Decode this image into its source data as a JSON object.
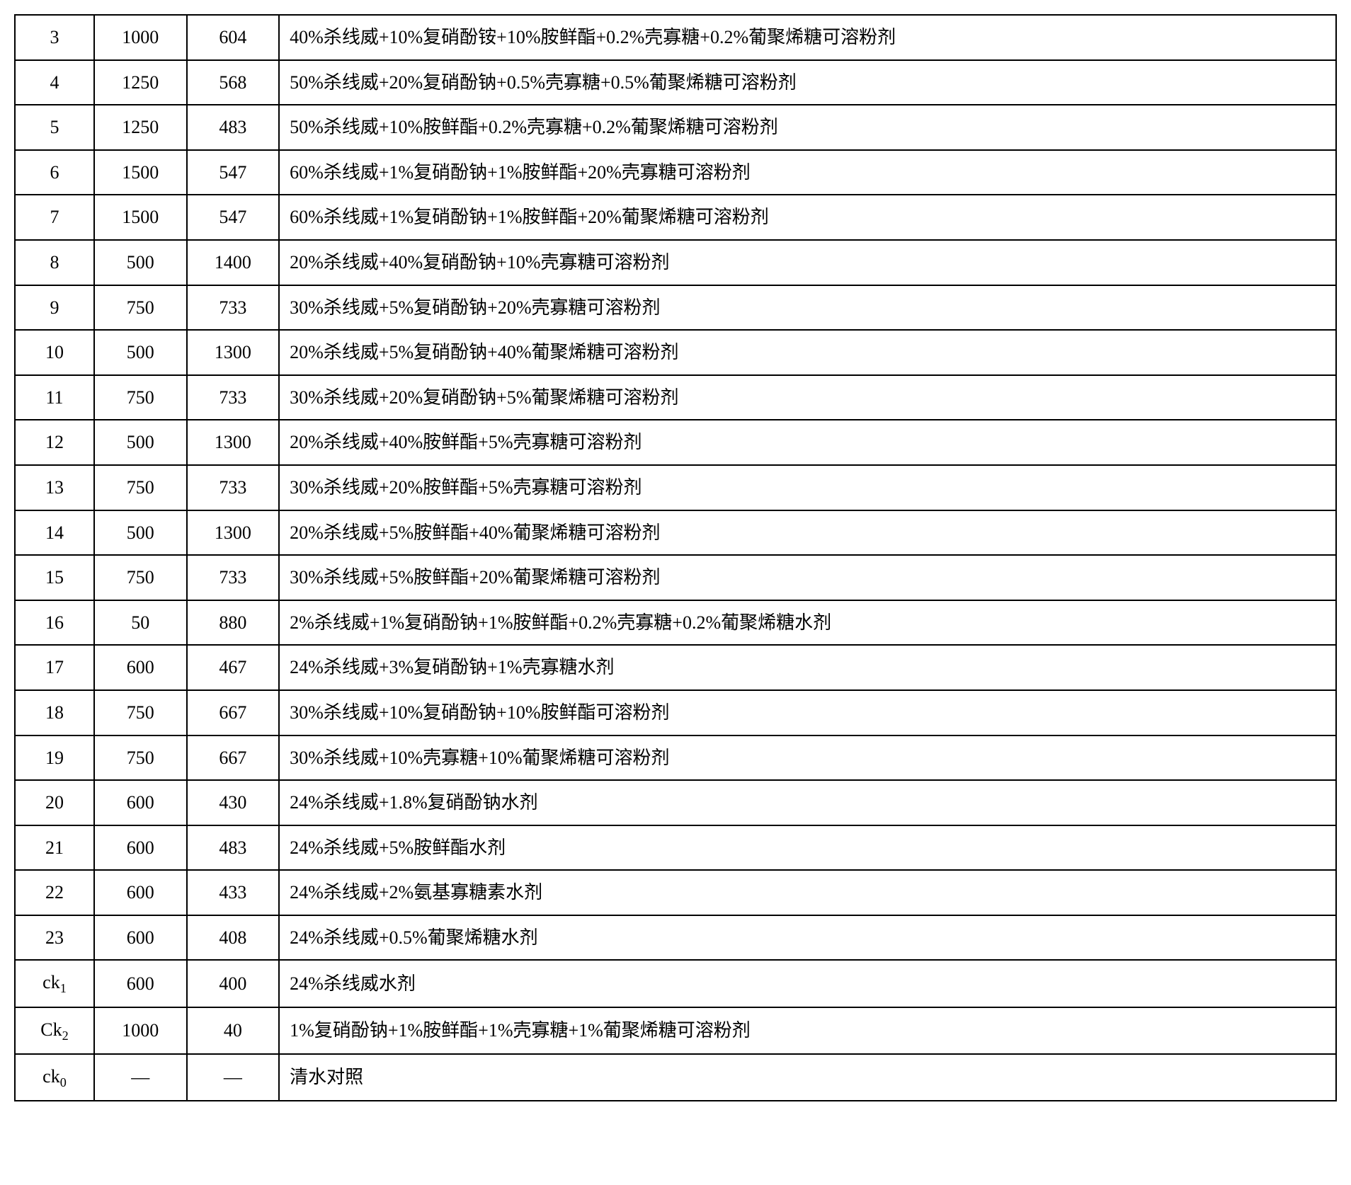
{
  "table": {
    "border_color": "#000000",
    "background_color": "#ffffff",
    "text_color": "#000000",
    "font_size_pt": 20,
    "columns": [
      {
        "align": "center",
        "width_pct": 6
      },
      {
        "align": "center",
        "width_pct": 7
      },
      {
        "align": "center",
        "width_pct": 7
      },
      {
        "align": "left",
        "width_pct": 80
      }
    ],
    "rows": [
      {
        "c1": "3",
        "c2": "1000",
        "c3": "604",
        "c4": "40%杀线威+10%复硝酚铵+10%胺鲜酯+0.2%壳寡糖+0.2%葡聚烯糖可溶粉剂"
      },
      {
        "c1": "4",
        "c2": "1250",
        "c3": "568",
        "c4": "50%杀线威+20%复硝酚钠+0.5%壳寡糖+0.5%葡聚烯糖可溶粉剂"
      },
      {
        "c1": "5",
        "c2": "1250",
        "c3": "483",
        "c4": "50%杀线威+10%胺鲜酯+0.2%壳寡糖+0.2%葡聚烯糖可溶粉剂"
      },
      {
        "c1": "6",
        "c2": "1500",
        "c3": "547",
        "c4": "60%杀线威+1%复硝酚钠+1%胺鲜酯+20%壳寡糖可溶粉剂"
      },
      {
        "c1": "7",
        "c2": "1500",
        "c3": "547",
        "c4": "60%杀线威+1%复硝酚钠+1%胺鲜酯+20%葡聚烯糖可溶粉剂"
      },
      {
        "c1": "8",
        "c2": "500",
        "c3": "1400",
        "c4": "20%杀线威+40%复硝酚钠+10%壳寡糖可溶粉剂"
      },
      {
        "c1": "9",
        "c2": "750",
        "c3": "733",
        "c4": "30%杀线威+5%复硝酚钠+20%壳寡糖可溶粉剂"
      },
      {
        "c1": "10",
        "c2": "500",
        "c3": "1300",
        "c4": "20%杀线威+5%复硝酚钠+40%葡聚烯糖可溶粉剂"
      },
      {
        "c1": "11",
        "c2": "750",
        "c3": "733",
        "c4": "30%杀线威+20%复硝酚钠+5%葡聚烯糖可溶粉剂"
      },
      {
        "c1": "12",
        "c2": "500",
        "c3": "1300",
        "c4": "20%杀线威+40%胺鲜酯+5%壳寡糖可溶粉剂"
      },
      {
        "c1": "13",
        "c2": "750",
        "c3": "733",
        "c4": "30%杀线威+20%胺鲜酯+5%壳寡糖可溶粉剂"
      },
      {
        "c1": "14",
        "c2": "500",
        "c3": "1300",
        "c4": "20%杀线威+5%胺鲜酯+40%葡聚烯糖可溶粉剂"
      },
      {
        "c1": "15",
        "c2": "750",
        "c3": "733",
        "c4": "30%杀线威+5%胺鲜酯+20%葡聚烯糖可溶粉剂"
      },
      {
        "c1": "16",
        "c2": "50",
        "c3": "880",
        "c4": "2%杀线威+1%复硝酚钠+1%胺鲜酯+0.2%壳寡糖+0.2%葡聚烯糖水剂"
      },
      {
        "c1": "17",
        "c2": "600",
        "c3": "467",
        "c4": "24%杀线威+3%复硝酚钠+1%壳寡糖水剂"
      },
      {
        "c1": "18",
        "c2": "750",
        "c3": "667",
        "c4": "30%杀线威+10%复硝酚钠+10%胺鲜酯可溶粉剂"
      },
      {
        "c1": "19",
        "c2": "750",
        "c3": "667",
        "c4": "30%杀线威+10%壳寡糖+10%葡聚烯糖可溶粉剂"
      },
      {
        "c1": "20",
        "c2": "600",
        "c3": "430",
        "c4": "24%杀线威+1.8%复硝酚钠水剂"
      },
      {
        "c1": "21",
        "c2": "600",
        "c3": "483",
        "c4": "24%杀线威+5%胺鲜酯水剂"
      },
      {
        "c1": "22",
        "c2": "600",
        "c3": "433",
        "c4": "24%杀线威+2%氨基寡糖素水剂"
      },
      {
        "c1": "23",
        "c2": "600",
        "c3": "408",
        "c4": "24%杀线威+0.5%葡聚烯糖水剂"
      },
      {
        "c1_html": "ck<span class=\"sub\">1</span>",
        "c2": "600",
        "c3": "400",
        "c4": "24%杀线威水剂"
      },
      {
        "c1_html": "Ck<span class=\"sub\">2</span>",
        "c2": "1000",
        "c3": "40",
        "c4": "1%复硝酚钠+1%胺鲜酯+1%壳寡糖+1%葡聚烯糖可溶粉剂"
      },
      {
        "c1_html": "ck<span class=\"sub\">0</span>",
        "c2": "—",
        "c3": "—",
        "c4": "清水对照"
      }
    ]
  }
}
